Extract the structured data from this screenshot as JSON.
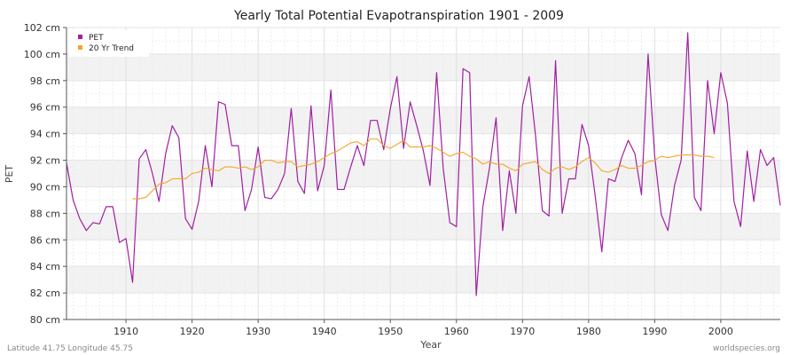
{
  "chart_data": {
    "type": "line",
    "title": "Yearly Total Potential Evapotranspiration 1901 - 2009",
    "xlabel": "Year",
    "ylabel": "PET",
    "y_unit": "cm",
    "xlim": [
      1901,
      2009
    ],
    "ylim": [
      80,
      102
    ],
    "x_ticks": [
      1910,
      1920,
      1930,
      1940,
      1950,
      1960,
      1970,
      1980,
      1990,
      2000
    ],
    "x_tick_labels": [
      "1910",
      "1920",
      "1930",
      "1940",
      "1950",
      "1960",
      "1970",
      "1980",
      "1990",
      "2000"
    ],
    "y_ticks": [
      80,
      82,
      84,
      86,
      88,
      90,
      92,
      94,
      96,
      98,
      100,
      102
    ],
    "y_tick_labels": [
      "80 cm",
      "82 cm",
      "84 cm",
      "86 cm",
      "88 cm",
      "90 cm",
      "92 cm",
      "94 cm",
      "96 cm",
      "98 cm",
      "100 cm",
      "102 cm"
    ],
    "grid": true,
    "legend_position": "top-left",
    "series": [
      {
        "name": "PET",
        "color": "#a020a0",
        "x_start": 1901,
        "values": [
          91.8,
          89.0,
          87.6,
          86.7,
          87.3,
          87.2,
          88.5,
          88.5,
          85.8,
          86.1,
          82.8,
          92.1,
          92.8,
          91.0,
          88.9,
          92.5,
          94.6,
          93.7,
          87.6,
          86.8,
          88.9,
          93.1,
          90.0,
          96.4,
          96.2,
          93.1,
          93.1,
          88.2,
          89.8,
          93.0,
          89.2,
          89.1,
          89.8,
          91.0,
          95.9,
          90.4,
          89.5,
          96.1,
          89.7,
          91.6,
          97.3,
          89.8,
          89.8,
          91.5,
          93.1,
          91.6,
          95.0,
          95.0,
          92.8,
          95.9,
          98.3,
          92.9,
          96.4,
          94.6,
          92.7,
          90.1,
          98.6,
          91.4,
          87.3,
          87.0,
          98.9,
          98.6,
          81.8,
          88.5,
          91.4,
          95.2,
          86.7,
          91.2,
          88.0,
          96.1,
          98.3,
          93.7,
          88.2,
          87.8,
          99.5,
          88.0,
          90.6,
          90.6,
          94.7,
          93.1,
          89.3,
          85.1,
          90.6,
          90.4,
          92.2,
          93.5,
          92.5,
          89.4,
          100.0,
          92.3,
          87.9,
          86.7,
          90.1,
          92.0,
          101.6,
          89.2,
          88.2,
          98.0,
          94.0,
          98.6,
          96.3,
          88.9,
          87.0,
          92.7,
          88.9,
          92.8,
          91.6,
          92.2,
          88.6
        ]
      },
      {
        "name": "20 Yr Trend",
        "color": "#f5a623",
        "x_start": 1911,
        "values": [
          89.1,
          89.1,
          89.2,
          89.7,
          90.2,
          90.3,
          90.6,
          90.6,
          90.6,
          91.0,
          91.1,
          91.4,
          91.3,
          91.2,
          91.5,
          91.5,
          91.4,
          91.5,
          91.3,
          91.5,
          92.0,
          92.0,
          91.8,
          91.9,
          91.9,
          91.5,
          91.6,
          91.7,
          91.9,
          92.2,
          92.5,
          92.7,
          93.0,
          93.3,
          93.4,
          93.1,
          93.6,
          93.6,
          93.1,
          92.9,
          93.2,
          93.5,
          93.0,
          93.0,
          93.0,
          93.1,
          92.9,
          92.6,
          92.3,
          92.5,
          92.6,
          92.3,
          92.1,
          91.7,
          91.9,
          91.7,
          91.7,
          91.4,
          91.2,
          91.7,
          91.8,
          91.9,
          91.3,
          91.0,
          91.4,
          91.5,
          91.3,
          91.5,
          91.9,
          92.2,
          91.8,
          91.2,
          91.1,
          91.3,
          91.6,
          91.4,
          91.4,
          91.6,
          91.9,
          92.0,
          92.3,
          92.2,
          92.3,
          92.4,
          92.4,
          92.4,
          92.3,
          92.3,
          92.2
        ]
      }
    ]
  },
  "footer": {
    "location": "Latitude 41.75 Longitude 45.75",
    "source": "worldspecies.org"
  }
}
